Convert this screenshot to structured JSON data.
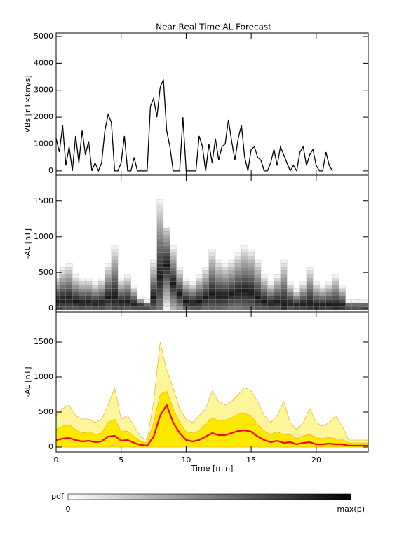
{
  "chart_data": [
    {
      "type": "line",
      "title": "Near Real Time AL Forecast",
      "ylabel": "VBs [nT×km/s]",
      "color": "#000000",
      "x": [
        0,
        0.25,
        0.5,
        0.75,
        1,
        1.25,
        1.5,
        1.75,
        2,
        2.25,
        2.5,
        2.75,
        3,
        3.25,
        3.5,
        3.75,
        4,
        4.25,
        4.5,
        4.75,
        5,
        5.25,
        5.5,
        5.75,
        6,
        6.25,
        6.5,
        6.75,
        7,
        7.25,
        7.5,
        7.75,
        8,
        8.25,
        8.5,
        8.75,
        9,
        9.25,
        9.5,
        9.75,
        10,
        10.25,
        10.5,
        10.75,
        11,
        11.25,
        11.5,
        11.75,
        12,
        12.25,
        12.5,
        12.75,
        13,
        13.25,
        13.5,
        13.75,
        14,
        14.25,
        14.5,
        14.75,
        15,
        15.25,
        15.5,
        15.75,
        16,
        16.25,
        16.5,
        16.75,
        17,
        17.25,
        17.5,
        17.75,
        18,
        18.25,
        18.5,
        18.75,
        19,
        19.25,
        19.5,
        19.75,
        20,
        20.25,
        20.5,
        20.75,
        21,
        21.25
      ],
      "values": [
        1200,
        700,
        1700,
        200,
        900,
        0,
        1300,
        300,
        1500,
        600,
        1100,
        0,
        300,
        0,
        300,
        1500,
        2100,
        1800,
        0,
        0,
        300,
        1300,
        0,
        0,
        500,
        0,
        0,
        0,
        0,
        2400,
        2700,
        2000,
        3100,
        3400,
        1500,
        900,
        0,
        0,
        0,
        2000,
        0,
        0,
        0,
        0,
        1300,
        900,
        0,
        1000,
        300,
        1200,
        400,
        900,
        1000,
        1900,
        1100,
        400,
        1200,
        1700,
        500,
        0,
        800,
        900,
        500,
        400,
        0,
        0,
        300,
        800,
        200,
        900,
        600,
        300,
        0,
        200,
        0,
        700,
        900,
        200,
        600,
        800,
        200,
        0,
        0,
        700,
        200,
        0
      ],
      "xlim": [
        0,
        24
      ],
      "xticks": [
        0,
        5,
        10,
        15,
        20
      ],
      "ylim": [
        -160,
        5130
      ],
      "yticks": [
        0,
        1000,
        2000,
        3000,
        4000,
        5000
      ]
    },
    {
      "type": "pdf",
      "ylabel": "-AL [nT]",
      "color": "#000000",
      "x": [
        0,
        0.5,
        1,
        1.5,
        2,
        2.5,
        3,
        3.5,
        4,
        4.5,
        5,
        5.5,
        6,
        6.5,
        7,
        7.5,
        8,
        8.5,
        9,
        9.5,
        10,
        10.5,
        11,
        11.5,
        12,
        12.5,
        13,
        13.5,
        14,
        14.5,
        15,
        15.5,
        16,
        16.5,
        17,
        17.5,
        18,
        18.5,
        19,
        19.5,
        20,
        20.5,
        21,
        21.5,
        22,
        22.5,
        23,
        23.5,
        24
      ],
      "values": [
        100,
        120,
        130,
        100,
        80,
        90,
        70,
        80,
        150,
        160,
        90,
        100,
        60,
        30,
        20,
        150,
        450,
        600,
        350,
        200,
        100,
        80,
        100,
        150,
        200,
        170,
        170,
        200,
        230,
        240,
        220,
        150,
        100,
        70,
        90,
        60,
        70,
        40,
        60,
        70,
        40,
        40,
        50,
        40,
        40,
        20,
        20,
        20,
        20
      ],
      "upper": [
        450,
        550,
        600,
        450,
        400,
        400,
        350,
        400,
        600,
        850,
        400,
        450,
        300,
        150,
        100,
        650,
        1500,
        1100,
        850,
        550,
        400,
        350,
        450,
        550,
        800,
        650,
        600,
        650,
        750,
        850,
        800,
        650,
        450,
        350,
        450,
        650,
        350,
        250,
        350,
        550,
        350,
        300,
        350,
        450,
        300,
        100,
        100,
        100,
        100
      ],
      "xlim": [
        0,
        24
      ],
      "xticks": [
        0,
        5,
        10,
        15,
        20
      ],
      "ylim": [
        -50,
        1860
      ],
      "yticks": [
        0,
        500,
        1000,
        1500
      ]
    },
    {
      "type": "band",
      "ylabel": "-AL [nT]",
      "xlabel": "Time [min]",
      "color": "#ff0000",
      "band_colors": [
        "#fff59a",
        "#ffe800"
      ],
      "edge_color": "#f0a000",
      "x": [
        0,
        0.5,
        1,
        1.5,
        2,
        2.5,
        3,
        3.5,
        4,
        4.5,
        5,
        5.5,
        6,
        6.5,
        7,
        7.5,
        8,
        8.5,
        9,
        9.5,
        10,
        10.5,
        11,
        11.5,
        12,
        12.5,
        13,
        13.5,
        14,
        14.5,
        15,
        15.5,
        16,
        16.5,
        17,
        17.5,
        18,
        18.5,
        19,
        19.5,
        20,
        20.5,
        21,
        21.5,
        22,
        22.5,
        23,
        23.5,
        24
      ],
      "values": [
        100,
        120,
        130,
        100,
        80,
        90,
        70,
        80,
        150,
        160,
        90,
        100,
        60,
        30,
        20,
        150,
        450,
        600,
        350,
        200,
        100,
        80,
        100,
        150,
        200,
        170,
        170,
        200,
        230,
        240,
        220,
        150,
        100,
        70,
        90,
        60,
        70,
        40,
        60,
        70,
        40,
        40,
        50,
        40,
        40,
        20,
        20,
        20,
        20
      ],
      "q75": [
        250,
        300,
        320,
        250,
        200,
        220,
        180,
        200,
        350,
        400,
        220,
        230,
        150,
        80,
        60,
        350,
        750,
        800,
        550,
        350,
        220,
        200,
        230,
        330,
        420,
        380,
        380,
        420,
        470,
        480,
        450,
        320,
        230,
        180,
        220,
        170,
        180,
        120,
        160,
        180,
        130,
        120,
        140,
        120,
        110,
        60,
        60,
        60,
        60
      ],
      "upper": [
        450,
        550,
        600,
        450,
        400,
        400,
        350,
        400,
        600,
        850,
        400,
        450,
        300,
        150,
        100,
        650,
        1500,
        1100,
        850,
        550,
        400,
        350,
        450,
        550,
        800,
        650,
        600,
        650,
        750,
        850,
        800,
        650,
        450,
        350,
        450,
        650,
        350,
        250,
        350,
        550,
        350,
        300,
        350,
        450,
        300,
        100,
        100,
        100,
        100
      ],
      "xlim": [
        0,
        24
      ],
      "xticks": [
        0,
        5,
        10,
        15,
        20
      ],
      "ylim": [
        -70,
        1930
      ],
      "yticks": [
        0,
        500,
        1000,
        1500
      ]
    }
  ],
  "colorbar": {
    "label": "pdf",
    "min_label": "0",
    "max_label": "max(p)",
    "colors": [
      "#ffffff",
      "#000000"
    ]
  }
}
